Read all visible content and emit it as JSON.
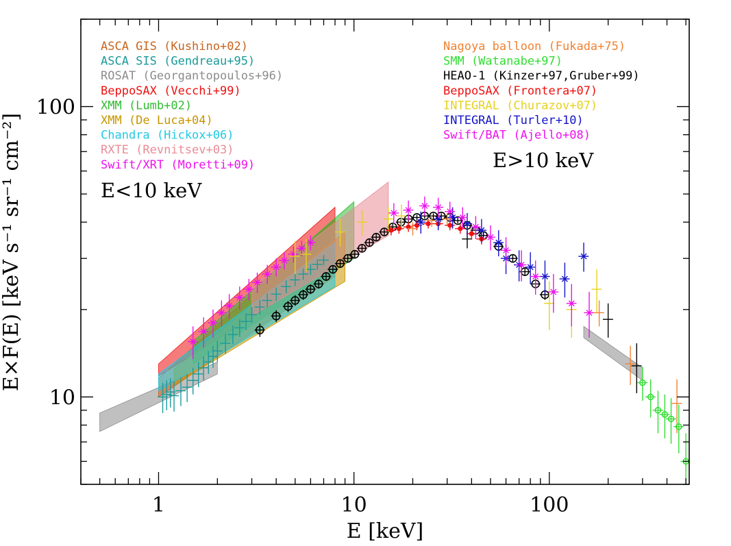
{
  "chart_data": {
    "type": "scatter",
    "title": "",
    "xlabel": "E [keV]",
    "ylabel": "E×F(E) [keV s⁻¹ sr⁻¹ cm⁻²]",
    "x_scale": "log",
    "y_scale": "log",
    "xlim": [
      0.4,
      520
    ],
    "ylim": [
      5,
      200
    ],
    "x_tick_labels": [
      {
        "value": 1,
        "label": "1"
      },
      {
        "value": 10,
        "label": "10"
      },
      {
        "value": 100,
        "label": "100"
      }
    ],
    "y_tick_labels": [
      {
        "value": 10,
        "label": "10"
      },
      {
        "value": 100,
        "label": "100"
      }
    ],
    "grid": false,
    "legend_left": [
      {
        "label": "ASCA GIS (Kushino+02)",
        "color": "#c8641e"
      },
      {
        "label": "ASCA SIS (Gendreau+95)",
        "color": "#1a9a9a"
      },
      {
        "label": "ROSAT (Georgantopoulos+96)",
        "color": "#8c8c8c"
      },
      {
        "label": "BeppoSAX (Vecchi+99)",
        "color": "#ee1111"
      },
      {
        "label": "XMM (Lumb+02)",
        "color": "#33bb33"
      },
      {
        "label": "XMM (De Luca+04)",
        "color": "#c89600"
      },
      {
        "label": "Chandra (Hickox+06)",
        "color": "#22c8e6"
      },
      {
        "label": "RXTE (Revnitsev+03)",
        "color": "#e88c96"
      },
      {
        "label": "Swift/XRT (Moretti+09)",
        "color": "#ee11ee"
      }
    ],
    "legend_right": [
      {
        "label": "Nagoya balloon (Fukada+75)",
        "color": "#f08232"
      },
      {
        "label": "SMM (Watanabe+97)",
        "color": "#33dd33"
      },
      {
        "label": "HEAO-1 (Kinzer+97,Gruber+99)",
        "color": "#000000"
      },
      {
        "label": "BeppoSAX (Frontera+07)",
        "color": "#ee1111"
      },
      {
        "label": "INTEGRAL (Churazov+07)",
        "color": "#e6d21e"
      },
      {
        "label": "INTEGRAL (Turler+10)",
        "color": "#1414c8"
      },
      {
        "label": "Swift/BAT (Ajello+08)",
        "color": "#ee11ee"
      }
    ],
    "annotations": [
      "E<10 keV",
      "E>10 keV"
    ],
    "bands": [
      {
        "name": "ROSAT (Georgantopoulos+96)",
        "color": "#8c8c8c",
        "x": [
          0.5,
          2.0
        ],
        "y_low": [
          7.6,
          12.0
        ],
        "y_high": [
          8.8,
          13.2
        ]
      },
      {
        "name": "BeppoSAX (Vecchi+99)",
        "color": "#ee1111",
        "x": [
          1.0,
          8.0
        ],
        "y_low": [
          11.8,
          28.5
        ],
        "y_high": [
          13.0,
          45.0
        ]
      },
      {
        "name": "ASCA GIS (Kushino+02)",
        "color": "#c8641e",
        "x": [
          1.0,
          8.0
        ],
        "y_low": [
          10.0,
          26.0
        ],
        "y_high": [
          11.6,
          41.0
        ]
      },
      {
        "name": "XMM (Lumb+02)",
        "color": "#33bb33",
        "x": [
          1.5,
          10.0
        ],
        "y_low": [
          13.0,
          30.0
        ],
        "y_high": [
          15.5,
          47.0
        ]
      },
      {
        "name": "XMM (De Luca+04)",
        "color": "#c89600",
        "x": [
          1.2,
          9.0
        ],
        "y_low": [
          11.0,
          25.0
        ],
        "y_high": [
          12.5,
          37.0
        ]
      },
      {
        "name": "Chandra (Hickox+06)",
        "color": "#22c8e6",
        "x": [
          1.0,
          8.0
        ],
        "y_low": [
          10.5,
          24.0
        ],
        "y_high": [
          12.0,
          34.0
        ]
      },
      {
        "name": "RXTE (Revnitsev+03)",
        "color": "#e88c96",
        "x": [
          3.0,
          15.0
        ],
        "y_low": [
          19.0,
          36.0
        ],
        "y_high": [
          24.0,
          55.0
        ]
      },
      {
        "name": "HEAO-1 (Kinzer+97,Gruber+99)",
        "color": "#8c8c8c",
        "x": [
          150,
          300
        ],
        "y_low": [
          16.0,
          11.4
        ],
        "y_high": [
          17.5,
          12.6
        ]
      }
    ],
    "series": [
      {
        "name": "ASCA SIS (Gendreau+95)",
        "color": "#1a9a9a",
        "marker": "cross",
        "points": [
          [
            1.05,
            10.0
          ],
          [
            1.1,
            10.2
          ],
          [
            1.15,
            10.4
          ],
          [
            1.2,
            10.1
          ],
          [
            1.3,
            10.5
          ],
          [
            1.4,
            10.8
          ],
          [
            1.5,
            11.4
          ],
          [
            1.6,
            12.0
          ],
          [
            1.7,
            12.6
          ],
          [
            1.8,
            13.2
          ],
          [
            1.9,
            13.8
          ],
          [
            2.0,
            14.4
          ],
          [
            2.2,
            15.3
          ],
          [
            2.4,
            16.4
          ],
          [
            2.6,
            17.3
          ],
          [
            2.8,
            18.2
          ],
          [
            3.0,
            19.2
          ],
          [
            3.3,
            20.4
          ],
          [
            3.6,
            21.5
          ],
          [
            4.0,
            22.6
          ],
          [
            4.5,
            24.0
          ],
          [
            5.0,
            25.3
          ],
          [
            5.5,
            26.5
          ],
          [
            6.0,
            27.5
          ],
          [
            6.5,
            28.6
          ],
          [
            7.0,
            29.6
          ]
        ],
        "yerr": 1.2
      },
      {
        "name": "Swift/XRT (Moretti+09)",
        "color": "#ee11ee",
        "marker": "star",
        "points": [
          [
            1.5,
            15.5
          ],
          [
            1.7,
            16.8
          ],
          [
            1.9,
            18.0
          ],
          [
            2.1,
            19.5
          ],
          [
            2.3,
            20.6
          ],
          [
            2.6,
            22.0
          ],
          [
            2.9,
            23.5
          ],
          [
            3.2,
            24.8
          ],
          [
            3.6,
            26.5
          ],
          [
            4.0,
            28.0
          ],
          [
            4.4,
            29.5
          ],
          [
            4.9,
            31.0
          ],
          [
            5.4,
            32.5
          ],
          [
            6.0,
            34.0
          ]
        ],
        "yerr": 2.0
      },
      {
        "name": "HEAO-1 (Kinzer+97,Gruber+99)",
        "color": "#000000",
        "marker": "circle",
        "points": [
          [
            3.3,
            17.0
          ],
          [
            4.0,
            19.0
          ],
          [
            4.6,
            20.5
          ],
          [
            5.0,
            21.5
          ],
          [
            5.5,
            22.5
          ],
          [
            6.0,
            23.5
          ],
          [
            6.6,
            24.5
          ],
          [
            7.2,
            26.0
          ],
          [
            7.8,
            27.5
          ],
          [
            8.5,
            28.8
          ],
          [
            9.3,
            30.0
          ],
          [
            10.1,
            31.0
          ],
          [
            11.0,
            32.5
          ],
          [
            12.0,
            34.0
          ],
          [
            13.0,
            35.5
          ],
          [
            14.3,
            37.0
          ],
          [
            15.8,
            38.5
          ],
          [
            17.4,
            40.0
          ],
          [
            19.0,
            41.0
          ],
          [
            21.0,
            41.5
          ],
          [
            23.0,
            42.0
          ],
          [
            25.5,
            42.0
          ],
          [
            28.0,
            42.0
          ],
          [
            31.0,
            41.5
          ],
          [
            34.0,
            40.5
          ],
          [
            38.0,
            39.0
          ],
          [
            42.0,
            37.5
          ],
          [
            46.0,
            36.0
          ],
          [
            55.0,
            33.0
          ],
          [
            65.0,
            30.0
          ],
          [
            75.0,
            27.0
          ],
          [
            85.0,
            24.5
          ],
          [
            95.0,
            22.5
          ]
        ],
        "yerr": 0.9
      },
      {
        "name": "HEAO-1 (Kinzer+97,Gruber+99) high E",
        "color": "#000000",
        "marker": "cross",
        "points": [
          [
            38.0,
            35.0
          ],
          [
            200.0,
            18.5
          ],
          [
            280.0,
            12.8
          ]
        ],
        "yerr": 2.5
      },
      {
        "name": "INTEGRAL (Churazov+07)",
        "color": "#e6d21e",
        "marker": "cross",
        "points": [
          [
            5.0,
            30.5
          ],
          [
            5.7,
            31.0
          ],
          [
            8.5,
            37.0
          ],
          [
            11.0,
            40.0
          ],
          [
            15.0,
            41.0
          ],
          [
            17.5,
            42.0
          ],
          [
            100.0,
            21.0
          ],
          [
            130.0,
            20.0
          ],
          [
            175.0,
            23.5
          ]
        ],
        "yerr": 4.0
      },
      {
        "name": "BeppoSAX (Frontera+07)",
        "color": "#ee1111",
        "marker": "dot",
        "points": [
          [
            15.5,
            37.5
          ],
          [
            17.0,
            38.0
          ],
          [
            19.0,
            38.5
          ],
          [
            21.0,
            39.0
          ],
          [
            24.0,
            39.5
          ],
          [
            27.0,
            39.5
          ],
          [
            31.0,
            39.0
          ],
          [
            35.0,
            38.0
          ],
          [
            40.0,
            36.5
          ],
          [
            45.0,
            35.0
          ]
        ],
        "yerr": 1.5
      },
      {
        "name": "INTEGRAL (Turler+10)",
        "color": "#1414c8",
        "marker": "star",
        "points": [
          [
            22.0,
            40.0
          ],
          [
            27.0,
            41.0
          ],
          [
            32.0,
            41.5
          ],
          [
            38.0,
            39.5
          ],
          [
            45.0,
            37.5
          ],
          [
            55.0,
            34.0
          ],
          [
            60.0,
            30.0
          ],
          [
            70.0,
            28.5
          ],
          [
            80.0,
            28.0
          ],
          [
            95.0,
            26.0
          ],
          [
            120.0,
            25.5
          ],
          [
            150.0,
            30.5
          ]
        ],
        "yerr": 3.5
      },
      {
        "name": "Swift/BAT (Ajello+08)",
        "color": "#ee11ee",
        "marker": "star",
        "points": [
          [
            16.0,
            43.0
          ],
          [
            19.0,
            44.0
          ],
          [
            23.0,
            45.5
          ],
          [
            27.0,
            45.0
          ],
          [
            31.0,
            43.5
          ],
          [
            36.0,
            41.5
          ],
          [
            42.0,
            38.5
          ],
          [
            50.0,
            35.5
          ],
          [
            60.0,
            32.0
          ],
          [
            72.0,
            28.5
          ],
          [
            85.0,
            26.0
          ],
          [
            105.0,
            23.0
          ],
          [
            130.0,
            21.0
          ],
          [
            160.0,
            19.5
          ]
        ],
        "yerr": 3.5
      },
      {
        "name": "Nagoya balloon (Fukada+75)",
        "color": "#f08232",
        "marker": "cross",
        "points": [
          [
            20.0,
            38.0
          ],
          [
            25.0,
            40.5
          ],
          [
            30.0,
            41.0
          ],
          [
            180.0,
            19.5
          ],
          [
            260.0,
            13.0
          ],
          [
            450.0,
            9.5
          ]
        ],
        "yerr": 2.0
      },
      {
        "name": "SMM (Watanabe+97)",
        "color": "#33dd33",
        "marker": "open-circle",
        "points": [
          [
            300.0,
            11.2
          ],
          [
            330.0,
            10.0
          ],
          [
            360.0,
            9.0
          ],
          [
            390.0,
            8.7
          ],
          [
            420.0,
            8.4
          ],
          [
            460.0,
            7.9
          ],
          [
            500.0,
            6.0
          ]
        ],
        "yerr": 1.5
      }
    ]
  }
}
